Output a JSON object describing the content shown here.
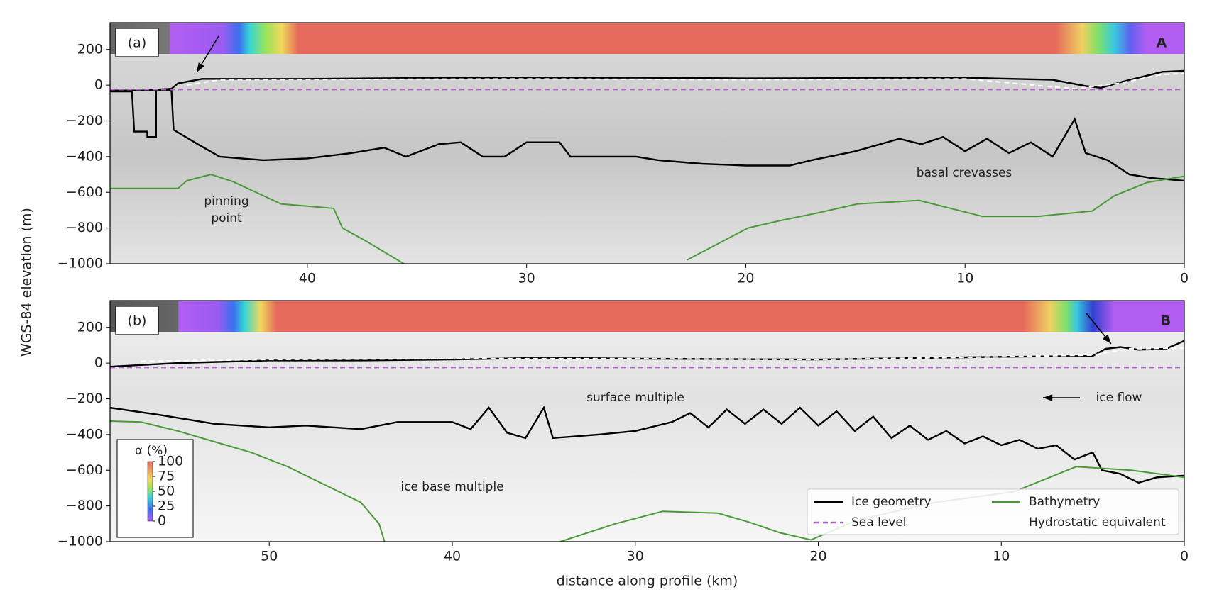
{
  "chart_data": [
    {
      "type": "line",
      "panel_label": "(a)",
      "profile_label": "A",
      "ylabel": "WGS-84 elevation (m)",
      "xlim": [
        49,
        0
      ],
      "xticks": [
        40,
        30,
        20,
        10,
        0
      ],
      "ylim": [
        -1000,
        350
      ],
      "yticks": [
        {
          "value": -1000,
          "label": "−1000"
        },
        {
          "value": -800,
          "label": "−800"
        },
        {
          "value": -600,
          "label": "−600"
        },
        {
          "value": -400,
          "label": "−400"
        },
        {
          "value": -200,
          "label": "−200"
        },
        0,
        200
      ],
      "annotations": [
        "pinning",
        "point",
        "basal crevasses"
      ],
      "series": [
        {
          "name": "Ice geometry",
          "color": "#000000",
          "dash": false,
          "x": [
            49,
            47.5,
            46.2,
            45.9,
            44.8,
            40,
            35,
            30,
            25,
            20,
            15,
            10,
            6,
            4.5,
            3.8,
            2.8,
            1.0,
            0,
            null,
            49,
            48.0,
            47.9,
            47.3,
            47.3,
            46.9,
            46.9,
            46.2,
            46.1,
            45.0,
            44,
            42,
            40,
            38,
            36.5,
            35.5,
            34,
            33,
            32,
            31,
            30,
            28.5,
            28,
            26,
            25,
            24,
            22,
            20,
            18,
            17,
            15,
            13,
            12,
            11,
            10,
            9,
            8,
            7,
            6,
            5,
            4.5,
            3.5,
            2.5,
            1.5,
            0
          ],
          "values": [
            -30,
            -30,
            -20,
            10,
            35,
            35,
            40,
            40,
            42,
            38,
            40,
            42,
            30,
            -5,
            -15,
            20,
            75,
            80,
            null,
            -35,
            -35,
            -260,
            -260,
            -290,
            -290,
            -30,
            -30,
            -250,
            -330,
            -400,
            -420,
            -410,
            -380,
            -350,
            -400,
            -330,
            -320,
            -400,
            -400,
            -320,
            -320,
            -400,
            -400,
            -400,
            -420,
            -440,
            -450,
            -450,
            -420,
            -370,
            -300,
            -330,
            -290,
            -370,
            -300,
            -380,
            -320,
            -400,
            -190,
            -380,
            -420,
            -500,
            -520,
            -535
          ]
        },
        {
          "name": "Sea level",
          "color": "#b65fcf",
          "dash": true,
          "x": [
            49,
            0
          ],
          "values": [
            -25,
            -25
          ]
        },
        {
          "name": "Bathymetry",
          "color": "#4a9a3a",
          "dash": false,
          "x": [
            49.0,
            45.9,
            45.5,
            44.4,
            43.4,
            41.2,
            38.8,
            38.4,
            37.3,
            35.6,
            null,
            22.7,
            21.3,
            19.9,
            18.5,
            16.7,
            14.9,
            12.1,
            9.2,
            6.7,
            4.2,
            3.2,
            1.7,
            0
          ],
          "values": [
            -578,
            -578,
            -535,
            -500,
            -540,
            -665,
            -690,
            -800,
            -875,
            -1000,
            null,
            -980,
            -890,
            -800,
            -760,
            -715,
            -665,
            -645,
            -735,
            -735,
            -705,
            -620,
            -545,
            -510
          ]
        },
        {
          "name": "Hydrostatic equivalent",
          "color": "#ffffff",
          "dash": true,
          "x": [
            45.5,
            44,
            30,
            20,
            10,
            5,
            3,
            1,
            0
          ],
          "values": [
            0,
            30,
            35,
            30,
            35,
            -20,
            10,
            60,
            65
          ]
        }
      ]
    },
    {
      "type": "line",
      "panel_label": "(b)",
      "profile_label": "B",
      "xlabel": "distance along profile (km)",
      "xlim": [
        58.7,
        0
      ],
      "xticks": [
        50,
        40,
        30,
        20,
        10,
        0
      ],
      "ylim": [
        -1000,
        350
      ],
      "yticks": [
        {
          "value": -1000,
          "label": "−1000"
        },
        {
          "value": -800,
          "label": "−800"
        },
        {
          "value": -600,
          "label": "−600"
        },
        {
          "value": -400,
          "label": "−400"
        },
        {
          "value": -200,
          "label": "−200"
        },
        0,
        200
      ],
      "annotations": [
        "surface multiple",
        "ice flow",
        "ice base multiple"
      ],
      "legend": "lower right",
      "colorbar": {
        "label": "α (%)",
        "lim": [
          0,
          100
        ],
        "ticks": [
          0,
          25,
          50,
          75,
          100
        ]
      },
      "series": [
        {
          "name": "Ice geometry",
          "color": "#000000",
          "dash": false,
          "x": [
            58.7,
            55,
            50,
            45,
            40,
            35,
            30,
            20,
            10,
            5,
            4.3,
            3.5,
            2.5,
            1,
            0,
            null,
            58.7,
            56,
            53,
            50,
            48,
            45,
            43,
            40,
            39,
            38,
            37,
            36,
            35,
            34.5,
            32,
            30,
            28,
            27,
            26,
            25,
            24,
            23,
            22,
            21,
            20,
            19,
            18,
            17,
            16,
            15,
            14,
            13,
            12,
            11,
            10,
            9,
            8,
            7,
            6,
            5,
            4.5,
            3.5,
            2.5,
            1.5,
            0
          ],
          "values": [
            -20,
            0,
            15,
            15,
            20,
            30,
            25,
            20,
            35,
            40,
            80,
            90,
            75,
            80,
            125,
            null,
            -250,
            -290,
            -340,
            -360,
            -350,
            -370,
            -330,
            -330,
            -370,
            -250,
            -390,
            -420,
            -250,
            -420,
            -400,
            -380,
            -330,
            -280,
            -360,
            -260,
            -340,
            -260,
            -340,
            -250,
            -350,
            -270,
            -380,
            -300,
            -420,
            -350,
            -430,
            -380,
            -450,
            -410,
            -460,
            -430,
            -480,
            -460,
            -540,
            -500,
            -600,
            -620,
            -670,
            -640,
            -630
          ]
        },
        {
          "name": "Sea level",
          "color": "#b65fcf",
          "dash": true,
          "x": [
            58.7,
            0
          ],
          "values": [
            -25,
            -25
          ]
        },
        {
          "name": "Bathymetry",
          "color": "#4a9a3a",
          "dash": false,
          "x": [
            58.7,
            57,
            55,
            53,
            51,
            49,
            47,
            45,
            44,
            43.7,
            null,
            34.1,
            31.1,
            28.5,
            25.5,
            23.8,
            22.1,
            20.4,
            17.9,
            13.6,
            9.3,
            5.9,
            2.9,
            0
          ],
          "values": [
            -325,
            -330,
            -380,
            -440,
            -500,
            -580,
            -680,
            -780,
            -900,
            -1000,
            null,
            -1000,
            -900,
            -830,
            -840,
            -890,
            -950,
            -990,
            -880,
            -780,
            -720,
            -580,
            -600,
            -640
          ]
        },
        {
          "name": "Hydrostatic equivalent",
          "color": "#ffffff",
          "dash": true,
          "x": [
            57,
            50,
            40,
            30,
            20,
            10,
            5,
            3,
            0
          ],
          "values": [
            10,
            20,
            25,
            25,
            20,
            35,
            45,
            80,
            85
          ]
        }
      ]
    }
  ]
}
